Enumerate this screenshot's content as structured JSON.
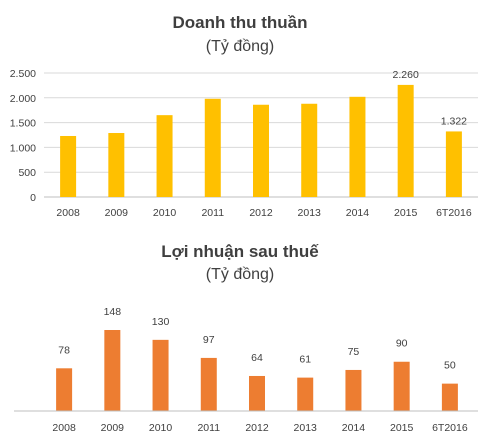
{
  "chart_data": [
    {
      "type": "bar",
      "title": "Doanh thu thuần",
      "subtitle": "(Tỷ đồng)",
      "categories": [
        "2008",
        "2009",
        "2010",
        "2011",
        "2012",
        "2013",
        "2014",
        "2015",
        "6T2016"
      ],
      "values": [
        1230,
        1290,
        1650,
        1980,
        1860,
        1880,
        2020,
        2260,
        1322
      ],
      "data_labels": {
        "7": "2.260",
        "8": "1.322"
      },
      "ylim": [
        0,
        2500
      ],
      "yticks": [
        0,
        500,
        1000,
        1500,
        2000,
        2500
      ],
      "ytick_labels": [
        "0",
        "500",
        "1.000",
        "1.500",
        "2.000",
        "2.500"
      ],
      "grid": true,
      "color": "#FFC000"
    },
    {
      "type": "bar",
      "title": "Lợi nhuận sau thuế",
      "subtitle": "(Tỷ đồng)",
      "categories": [
        "2008",
        "2009",
        "2010",
        "2011",
        "2012",
        "2013",
        "2014",
        "2015",
        "6T2016"
      ],
      "values": [
        78,
        148,
        130,
        97,
        64,
        61,
        75,
        90,
        50
      ],
      "data_labels": {
        "0": "78",
        "1": "148",
        "2": "130",
        "3": "97",
        "4": "64",
        "5": "61",
        "6": "75",
        "7": "90",
        "8": "50"
      },
      "grid": false,
      "color": "#ED7D31"
    }
  ]
}
